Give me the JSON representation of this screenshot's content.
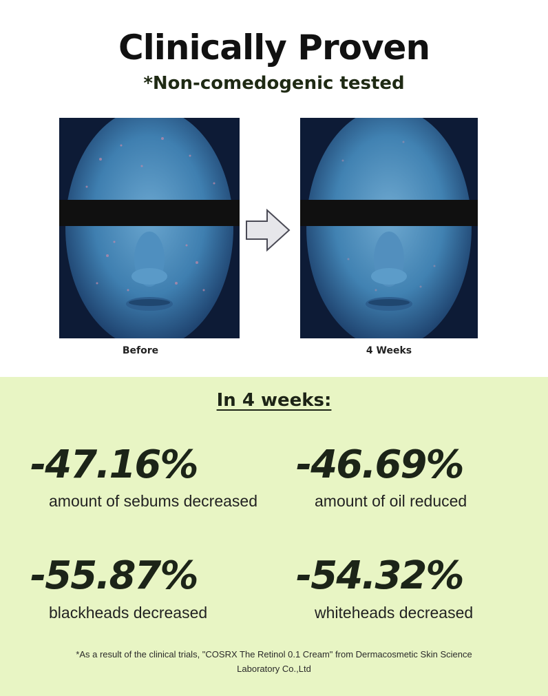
{
  "header": {
    "title": "Clinically Proven",
    "subtitle": "*Non-comedogenic tested"
  },
  "comparison": {
    "before_label": "Before",
    "after_label": "4 Weeks",
    "arrow_icon": "right-arrow-icon",
    "photo_tint": "#3f7fb0"
  },
  "results": {
    "heading": "In 4 weeks:",
    "background": "#e8f5c4",
    "stats": [
      {
        "value": "-47.16%",
        "label": "amount of sebums decreased"
      },
      {
        "value": "-46.69%",
        "label": "amount of oil reduced"
      },
      {
        "value": "-55.87%",
        "label": "blackheads decreased"
      },
      {
        "value": "-54.32%",
        "label": "whiteheads decreased"
      }
    ]
  },
  "footnote": {
    "line1": "*As a result of the clinical trials, \"COSRX The Retinol 0.1 Cream\" from Dermacosmetic Skin Science",
    "line2": "Laboratory Co.,Ltd"
  }
}
